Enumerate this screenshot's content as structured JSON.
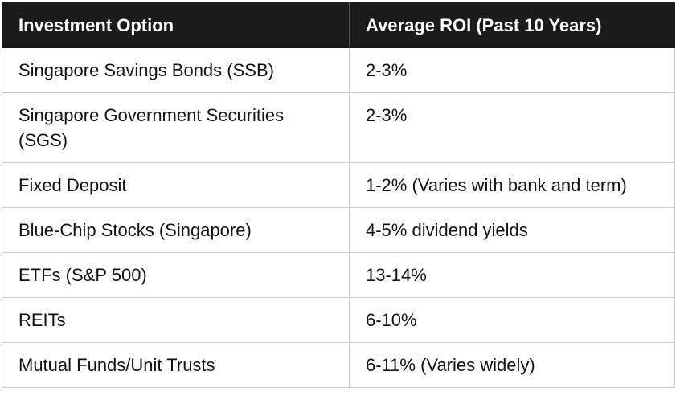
{
  "table": {
    "headers": [
      "Investment Option",
      "Average ROI (Past 10 Years)"
    ],
    "rows": [
      [
        "Singapore Savings Bonds (SSB)",
        "2-3%"
      ],
      [
        "Singapore Government Securities (SGS)",
        "2-3%"
      ],
      [
        "Fixed Deposit",
        "1-2% (Varies with bank and term)"
      ],
      [
        "Blue-Chip Stocks (Singapore)",
        "4-5% dividend yields"
      ],
      [
        "ETFs (S&P 500)",
        "13-14%"
      ],
      [
        "REITs",
        "6-10%"
      ],
      [
        "Mutual Funds/Unit Trusts",
        "6-11% (Varies widely)"
      ]
    ]
  }
}
